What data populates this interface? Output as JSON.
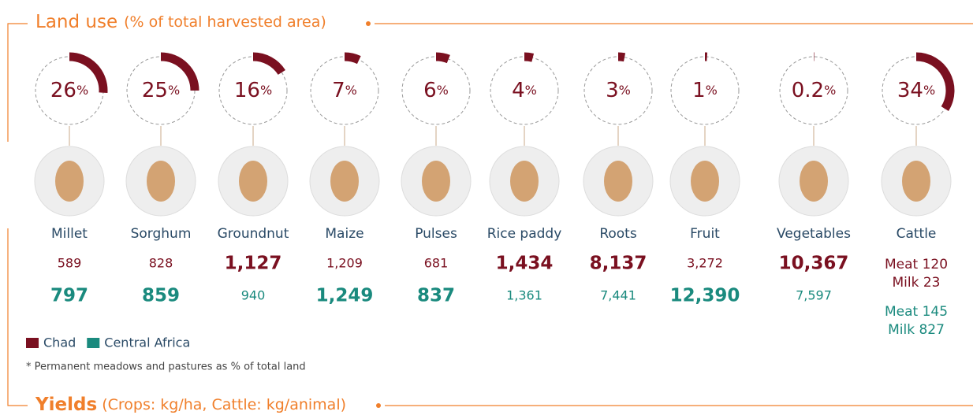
{
  "chart_data": {
    "type": "gauge",
    "title": "Land use",
    "subtitle": "(% of total harvested area)",
    "unit": "%",
    "color": "#7a1020",
    "categories": [
      "Millet",
      "Sorghum",
      "Groundnut",
      "Maize",
      "Pulses",
      "Rice paddy",
      "Roots",
      "Fruit",
      "Vegetables",
      "Cattle"
    ],
    "values": [
      26,
      25,
      16,
      7,
      6,
      4,
      3,
      1,
      0.2,
      34
    ],
    "yields_title": "Yields",
    "yields_subtitle": "(Crops: kg/ha,  Cattle: kg/animal)",
    "series": [
      {
        "name": "Chad",
        "color": "#7a1020",
        "values": [
          589,
          828,
          1127,
          1209,
          681,
          1434,
          8137,
          3272,
          10367,
          null
        ],
        "value_labels": [
          "589",
          "828",
          "1,127",
          "1,209",
          "681",
          "1,434",
          "8,137",
          "3,272",
          "10,367",
          null
        ],
        "cattle": [
          "Meat 120",
          "Milk 23"
        ]
      },
      {
        "name": "Central Africa",
        "color": "#1a8a7e",
        "values": [
          797,
          859,
          940,
          1249,
          837,
          1361,
          7441,
          12390,
          7597,
          null
        ],
        "value_labels": [
          "797",
          "859",
          "940",
          "1,249",
          "837",
          "1,361",
          "7,441",
          "12,390",
          "7,597",
          null
        ],
        "cattle": [
          "Meat 145",
          "Milk 827"
        ]
      }
    ],
    "note": "* Permanent meadows and pastures as % of total land"
  }
}
